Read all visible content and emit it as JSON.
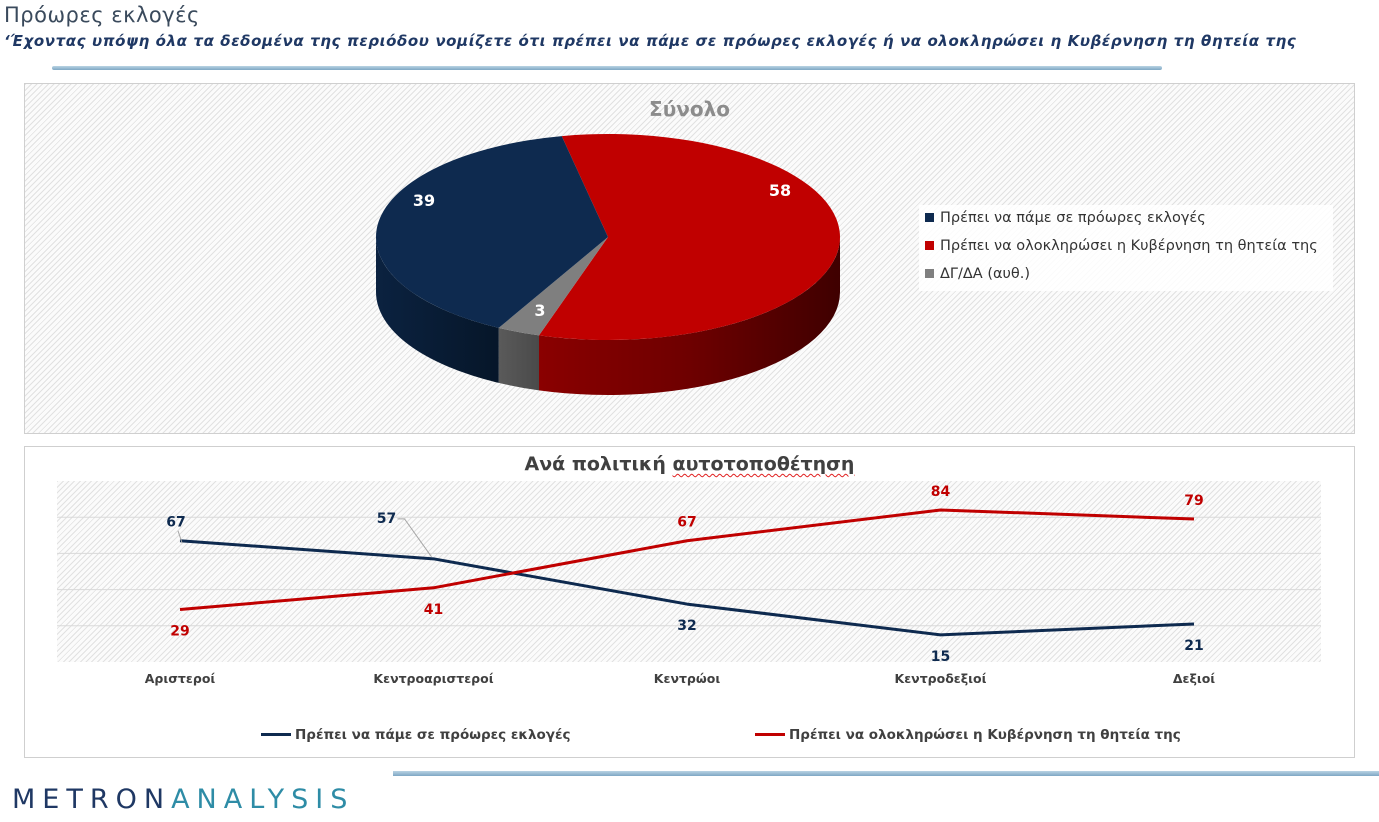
{
  "header": {
    "title": "Πρόωρες εκλογές",
    "subtitle": "‘Έχοντας υπόψη όλα τα δεδομένα της περιόδου νομίζετε ότι πρέπει να πάμε σε πρόωρες εκλογές ή να ολοκληρώσει η Κυβέρνηση τη θητεία της"
  },
  "logo": {
    "part1": "METRON",
    "part2": "ANALYSIS"
  },
  "colors": {
    "navy": "#0e2a4f",
    "red": "#c00000",
    "gray": "#7f7f7f"
  },
  "chart_data": [
    {
      "type": "pie",
      "title": "Σύνολο",
      "legend_position": "right",
      "slices": [
        {
          "label": "Πρέπει να πάμε σε πρόωρες εκλογές",
          "value": 39,
          "color": "#0e2a4f"
        },
        {
          "label": "Πρέπει να ολοκληρώσει η Κυβέρνηση τη θητεία της",
          "value": 58,
          "color": "#c00000"
        },
        {
          "label": "ΔΓ/ΔΑ (αυθ.)",
          "value": 3,
          "color": "#7f7f7f"
        }
      ]
    },
    {
      "type": "line",
      "title": "Ανά πολιτική αυτοτοποθέτηση",
      "categories": [
        "Αριστεροί",
        "Κεντροαριστεροί",
        "Κεντρώοι",
        "Κεντροδεξιοί",
        "Δεξιοί"
      ],
      "ylim": [
        0,
        100
      ],
      "grid": true,
      "legend_position": "bottom",
      "series": [
        {
          "name": "Πρέπει να πάμε σε πρόωρες εκλογές",
          "values": [
            67,
            57,
            32,
            15,
            21
          ],
          "color": "#0e2a4f"
        },
        {
          "name": "Πρέπει να ολοκληρώσει η Κυβέρνηση τη θητεία της",
          "values": [
            29,
            41,
            67,
            84,
            79
          ],
          "color": "#c00000"
        }
      ]
    }
  ]
}
